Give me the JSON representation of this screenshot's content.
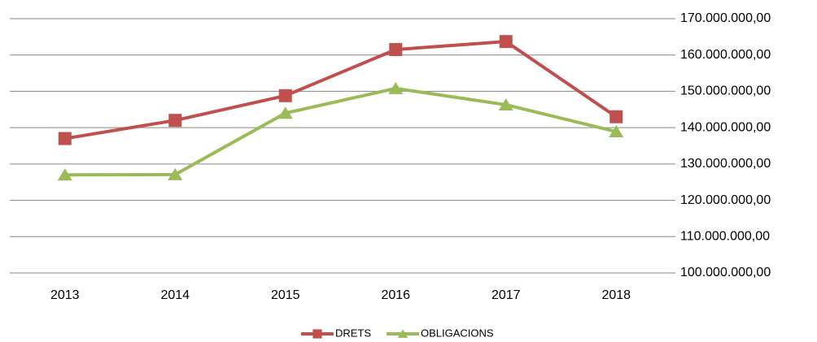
{
  "chart_data": {
    "type": "line",
    "categories": [
      "2013",
      "2014",
      "2015",
      "2016",
      "2017",
      "2018"
    ],
    "series": [
      {
        "name": "DRETS",
        "color": "#c0504d",
        "marker": "square",
        "values": [
          137000000,
          142000000,
          148800000,
          161500000,
          163700000,
          143000000
        ]
      },
      {
        "name": "OBLIGACIONS",
        "color": "#9bbb59",
        "marker": "triangle",
        "values": [
          127000000,
          127100000,
          144000000,
          150800000,
          146300000,
          138900000
        ]
      }
    ],
    "ylim": [
      100000000,
      170000000
    ],
    "yticks": [
      {
        "value": 100000000,
        "label": "100.000.000,00"
      },
      {
        "value": 110000000,
        "label": "110.000.000,00"
      },
      {
        "value": 120000000,
        "label": "120.000.000,00"
      },
      {
        "value": 130000000,
        "label": "130.000.000,00"
      },
      {
        "value": 140000000,
        "label": "140.000.000,00"
      },
      {
        "value": 150000000,
        "label": "150.000.000,00"
      },
      {
        "value": 160000000,
        "label": "160.000.000,00"
      },
      {
        "value": 170000000,
        "label": "170.000.000,00"
      }
    ],
    "grid": true,
    "legend": "bottom"
  }
}
